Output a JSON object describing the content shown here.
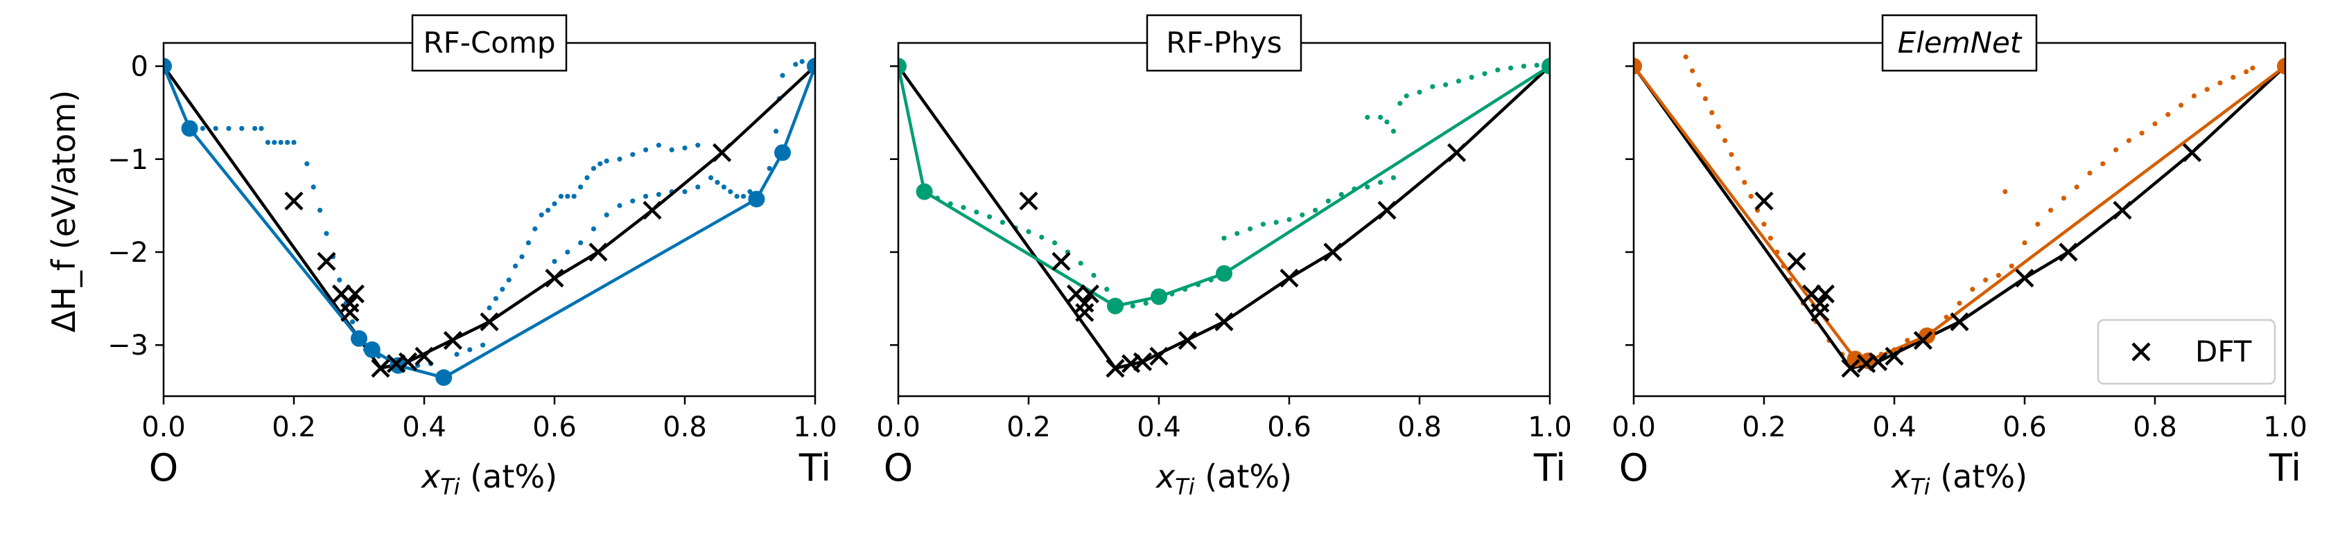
{
  "figure": {
    "ylabel": "ΔH_f (eV/atom)",
    "xlabel": "x_Ti (at%)"
  },
  "chart_data": [
    {
      "type": "scatter",
      "title": "RF-Comp",
      "title_italic": false,
      "color": "#0072b2",
      "xlabel": "x_Ti (at%)",
      "ylabel": "ΔH_f (eV/atom)",
      "xlim": [
        0.0,
        1.0
      ],
      "ylim": [
        -3.55,
        0.25
      ],
      "xticks": [
        "0.0",
        "0.2",
        "0.4",
        "0.6",
        "0.8",
        "1.0"
      ],
      "yticks": [
        "0",
        "−1",
        "−2",
        "−3"
      ],
      "end_labels": [
        "O",
        "Ti"
      ],
      "dft_points": [
        [
          0.2,
          -1.45
        ],
        [
          0.25,
          -2.1
        ],
        [
          0.273,
          -2.45
        ],
        [
          0.286,
          -2.55
        ],
        [
          0.294,
          -2.45
        ],
        [
          0.286,
          -2.65
        ],
        [
          0.333,
          -3.25
        ],
        [
          0.357,
          -3.2
        ],
        [
          0.375,
          -3.18
        ],
        [
          0.4,
          -3.12
        ],
        [
          0.444,
          -2.95
        ],
        [
          0.5,
          -2.75
        ],
        [
          0.6,
          -2.28
        ],
        [
          0.667,
          -2.0
        ],
        [
          0.75,
          -1.55
        ],
        [
          0.857,
          -0.93
        ]
      ],
      "dft_hull": [
        [
          0.0,
          0.0
        ],
        [
          0.333,
          -3.25
        ],
        [
          0.375,
          -3.18
        ],
        [
          0.5,
          -2.75
        ],
        [
          0.6,
          -2.28
        ],
        [
          0.667,
          -2.0
        ],
        [
          0.75,
          -1.55
        ],
        [
          0.857,
          -0.93
        ],
        [
          1.0,
          0.0
        ]
      ],
      "ml_hull": [
        [
          0.0,
          0.0
        ],
        [
          0.04,
          -0.67
        ],
        [
          0.3,
          -2.93
        ],
        [
          0.32,
          -3.05
        ],
        [
          0.36,
          -3.22
        ],
        [
          0.43,
          -3.35
        ],
        [
          0.91,
          -1.43
        ],
        [
          0.95,
          -0.93
        ],
        [
          1.0,
          0.0
        ]
      ],
      "ml_cloud": [
        [
          0.06,
          -0.67
        ],
        [
          0.08,
          -0.67
        ],
        [
          0.1,
          -0.67
        ],
        [
          0.12,
          -0.67
        ],
        [
          0.14,
          -0.67
        ],
        [
          0.15,
          -0.67
        ],
        [
          0.16,
          -0.82
        ],
        [
          0.17,
          -0.82
        ],
        [
          0.18,
          -0.82
        ],
        [
          0.19,
          -0.82
        ],
        [
          0.2,
          -0.82
        ],
        [
          0.22,
          -1.05
        ],
        [
          0.23,
          -1.3
        ],
        [
          0.24,
          -1.55
        ],
        [
          0.25,
          -1.8
        ],
        [
          0.26,
          -2.05
        ],
        [
          0.27,
          -2.3
        ],
        [
          0.28,
          -2.55
        ],
        [
          0.29,
          -2.75
        ],
        [
          0.31,
          -3.05
        ],
        [
          0.33,
          -3.12
        ],
        [
          0.35,
          -3.16
        ],
        [
          0.37,
          -3.2
        ],
        [
          0.39,
          -3.22
        ],
        [
          0.41,
          -3.2
        ],
        [
          0.45,
          -3.1
        ],
        [
          0.47,
          -3.05
        ],
        [
          0.49,
          -3.0
        ],
        [
          0.5,
          -2.6
        ],
        [
          0.51,
          -2.5
        ],
        [
          0.52,
          -2.4
        ],
        [
          0.53,
          -2.3
        ],
        [
          0.54,
          -2.15
        ],
        [
          0.55,
          -2.05
        ],
        [
          0.56,
          -1.9
        ],
        [
          0.57,
          -1.75
        ],
        [
          0.58,
          -1.6
        ],
        [
          0.59,
          -1.55
        ],
        [
          0.6,
          -1.48
        ],
        [
          0.61,
          -1.4
        ],
        [
          0.62,
          -1.4
        ],
        [
          0.63,
          -1.4
        ],
        [
          0.64,
          -1.3
        ],
        [
          0.65,
          -1.2
        ],
        [
          0.66,
          -1.1
        ],
        [
          0.67,
          -1.05
        ],
        [
          0.68,
          -1.02
        ],
        [
          0.7,
          -1.0
        ],
        [
          0.72,
          -0.95
        ],
        [
          0.74,
          -0.9
        ],
        [
          0.76,
          -0.85
        ],
        [
          0.78,
          -0.9
        ],
        [
          0.8,
          -0.88
        ],
        [
          0.82,
          -0.85
        ],
        [
          0.84,
          -1.2
        ],
        [
          0.85,
          -1.25
        ],
        [
          0.86,
          -1.3
        ],
        [
          0.87,
          -1.35
        ],
        [
          0.88,
          -1.4
        ],
        [
          0.89,
          -1.4
        ],
        [
          0.9,
          -1.35
        ],
        [
          0.93,
          -1.1
        ],
        [
          0.94,
          -0.7
        ],
        [
          0.945,
          -0.35
        ],
        [
          0.95,
          -0.1
        ],
        [
          0.97,
          0.02
        ],
        [
          0.98,
          0.05
        ],
        [
          0.6,
          -2.1
        ],
        [
          0.62,
          -2.0
        ],
        [
          0.64,
          -1.9
        ],
        [
          0.66,
          -1.75
        ],
        [
          0.68,
          -1.6
        ],
        [
          0.7,
          -1.5
        ],
        [
          0.72,
          -1.45
        ],
        [
          0.74,
          -1.4
        ],
        [
          0.76,
          -1.38
        ],
        [
          0.78,
          -1.35
        ],
        [
          0.8,
          -1.35
        ],
        [
          0.82,
          -1.3
        ]
      ]
    },
    {
      "type": "scatter",
      "title": "RF-Phys",
      "title_italic": false,
      "color": "#009e73",
      "xlabel": "x_Ti (at%)",
      "ylabel": "",
      "xlim": [
        0.0,
        1.0
      ],
      "ylim": [
        -3.55,
        0.25
      ],
      "xticks": [
        "0.0",
        "0.2",
        "0.4",
        "0.6",
        "0.8",
        "1.0"
      ],
      "yticks": [],
      "end_labels": [
        "O",
        "Ti"
      ],
      "dft_points": [
        [
          0.2,
          -1.45
        ],
        [
          0.25,
          -2.1
        ],
        [
          0.273,
          -2.45
        ],
        [
          0.286,
          -2.55
        ],
        [
          0.294,
          -2.45
        ],
        [
          0.286,
          -2.65
        ],
        [
          0.333,
          -3.25
        ],
        [
          0.357,
          -3.2
        ],
        [
          0.375,
          -3.18
        ],
        [
          0.4,
          -3.12
        ],
        [
          0.444,
          -2.95
        ],
        [
          0.5,
          -2.75
        ],
        [
          0.6,
          -2.28
        ],
        [
          0.667,
          -2.0
        ],
        [
          0.75,
          -1.55
        ],
        [
          0.857,
          -0.93
        ]
      ],
      "dft_hull": [
        [
          0.0,
          0.0
        ],
        [
          0.333,
          -3.25
        ],
        [
          0.375,
          -3.18
        ],
        [
          0.5,
          -2.75
        ],
        [
          0.6,
          -2.28
        ],
        [
          0.667,
          -2.0
        ],
        [
          0.75,
          -1.55
        ],
        [
          0.857,
          -0.93
        ],
        [
          1.0,
          0.0
        ]
      ],
      "ml_hull": [
        [
          0.0,
          0.0
        ],
        [
          0.04,
          -1.35
        ],
        [
          0.333,
          -2.58
        ],
        [
          0.4,
          -2.48
        ],
        [
          0.5,
          -2.23
        ],
        [
          1.0,
          0.0
        ]
      ],
      "ml_cloud": [
        [
          0.06,
          -1.42
        ],
        [
          0.08,
          -1.48
        ],
        [
          0.1,
          -1.52
        ],
        [
          0.12,
          -1.57
        ],
        [
          0.14,
          -1.62
        ],
        [
          0.16,
          -1.68
        ],
        [
          0.18,
          -1.74
        ],
        [
          0.2,
          -1.78
        ],
        [
          0.22,
          -1.84
        ],
        [
          0.24,
          -1.9
        ],
        [
          0.26,
          -2.0
        ],
        [
          0.28,
          -2.12
        ],
        [
          0.3,
          -2.25
        ],
        [
          0.32,
          -2.4
        ],
        [
          0.34,
          -2.55
        ],
        [
          0.36,
          -2.58
        ],
        [
          0.38,
          -2.55
        ],
        [
          0.42,
          -2.45
        ],
        [
          0.44,
          -2.4
        ],
        [
          0.46,
          -2.35
        ],
        [
          0.48,
          -2.3
        ],
        [
          0.5,
          -1.85
        ],
        [
          0.52,
          -1.8
        ],
        [
          0.54,
          -1.75
        ],
        [
          0.56,
          -1.7
        ],
        [
          0.58,
          -1.68
        ],
        [
          0.6,
          -1.65
        ],
        [
          0.62,
          -1.6
        ],
        [
          0.64,
          -1.55
        ],
        [
          0.66,
          -1.45
        ],
        [
          0.68,
          -1.38
        ],
        [
          0.7,
          -1.32
        ],
        [
          0.72,
          -1.3
        ],
        [
          0.74,
          -1.25
        ],
        [
          0.76,
          -1.2
        ],
        [
          0.72,
          -0.55
        ],
        [
          0.74,
          -0.55
        ],
        [
          0.75,
          -0.6
        ],
        [
          0.76,
          -0.7
        ],
        [
          0.77,
          -0.4
        ],
        [
          0.78,
          -0.32
        ],
        [
          0.8,
          -0.28
        ],
        [
          0.82,
          -0.22
        ],
        [
          0.84,
          -0.2
        ],
        [
          0.86,
          -0.16
        ],
        [
          0.88,
          -0.12
        ],
        [
          0.9,
          -0.08
        ],
        [
          0.92,
          -0.04
        ],
        [
          0.94,
          -0.02
        ],
        [
          0.96,
          0.0
        ],
        [
          0.98,
          0.01
        ]
      ]
    },
    {
      "type": "scatter",
      "title": "ElemNet",
      "title_italic": true,
      "color": "#d55e00",
      "xlabel": "x_Ti (at%)",
      "ylabel": "",
      "xlim": [
        0.0,
        1.0
      ],
      "ylim": [
        -3.55,
        0.25
      ],
      "xticks": [
        "0.0",
        "0.2",
        "0.4",
        "0.6",
        "0.8",
        "1.0"
      ],
      "yticks": [],
      "end_labels": [
        "O",
        "Ti"
      ],
      "legend": {
        "label": "DFT",
        "position": "lower right"
      },
      "dft_points": [
        [
          0.2,
          -1.45
        ],
        [
          0.25,
          -2.1
        ],
        [
          0.273,
          -2.45
        ],
        [
          0.286,
          -2.55
        ],
        [
          0.294,
          -2.45
        ],
        [
          0.286,
          -2.65
        ],
        [
          0.333,
          -3.25
        ],
        [
          0.357,
          -3.2
        ],
        [
          0.375,
          -3.18
        ],
        [
          0.4,
          -3.12
        ],
        [
          0.444,
          -2.95
        ],
        [
          0.5,
          -2.75
        ],
        [
          0.6,
          -2.28
        ],
        [
          0.667,
          -2.0
        ],
        [
          0.75,
          -1.55
        ],
        [
          0.857,
          -0.93
        ]
      ],
      "dft_hull": [
        [
          0.0,
          0.0
        ],
        [
          0.333,
          -3.25
        ],
        [
          0.375,
          -3.18
        ],
        [
          0.5,
          -2.75
        ],
        [
          0.6,
          -2.28
        ],
        [
          0.667,
          -2.0
        ],
        [
          0.75,
          -1.55
        ],
        [
          0.857,
          -0.93
        ],
        [
          1.0,
          0.0
        ]
      ],
      "ml_hull": [
        [
          0.0,
          0.0
        ],
        [
          0.34,
          -3.15
        ],
        [
          0.36,
          -3.17
        ],
        [
          0.45,
          -2.9
        ],
        [
          1.0,
          0.0
        ]
      ],
      "ml_cloud": [
        [
          0.08,
          0.1
        ],
        [
          0.09,
          -0.05
        ],
        [
          0.1,
          -0.2
        ],
        [
          0.11,
          -0.35
        ],
        [
          0.12,
          -0.5
        ],
        [
          0.13,
          -0.65
        ],
        [
          0.14,
          -0.8
        ],
        [
          0.15,
          -0.95
        ],
        [
          0.16,
          -1.1
        ],
        [
          0.17,
          -1.25
        ],
        [
          0.18,
          -1.4
        ],
        [
          0.19,
          -1.55
        ],
        [
          0.2,
          -1.7
        ],
        [
          0.21,
          -1.85
        ],
        [
          0.22,
          -2.0
        ],
        [
          0.23,
          -2.15
        ],
        [
          0.24,
          -2.3
        ],
        [
          0.26,
          -2.55
        ],
        [
          0.28,
          -2.75
        ],
        [
          0.3,
          -2.95
        ],
        [
          0.32,
          -3.1
        ],
        [
          0.38,
          -3.1
        ],
        [
          0.4,
          -3.05
        ],
        [
          0.42,
          -2.95
        ],
        [
          0.44,
          -2.9
        ],
        [
          0.46,
          -2.85
        ],
        [
          0.48,
          -2.7
        ],
        [
          0.5,
          -2.55
        ],
        [
          0.52,
          -2.4
        ],
        [
          0.54,
          -2.3
        ],
        [
          0.56,
          -2.25
        ],
        [
          0.58,
          -2.15
        ],
        [
          0.6,
          -1.9
        ],
        [
          0.62,
          -1.7
        ],
        [
          0.64,
          -1.55
        ],
        [
          0.66,
          -1.42
        ],
        [
          0.68,
          -1.3
        ],
        [
          0.7,
          -1.15
        ],
        [
          0.72,
          -1.05
        ],
        [
          0.74,
          -0.9
        ],
        [
          0.76,
          -0.8
        ],
        [
          0.78,
          -0.72
        ],
        [
          0.8,
          -0.62
        ],
        [
          0.82,
          -0.52
        ],
        [
          0.84,
          -0.42
        ],
        [
          0.86,
          -0.32
        ],
        [
          0.88,
          -0.25
        ],
        [
          0.9,
          -0.18
        ],
        [
          0.92,
          -0.12
        ],
        [
          0.94,
          -0.06
        ],
        [
          0.95,
          -0.02
        ],
        [
          0.57,
          -1.35
        ]
      ]
    }
  ]
}
